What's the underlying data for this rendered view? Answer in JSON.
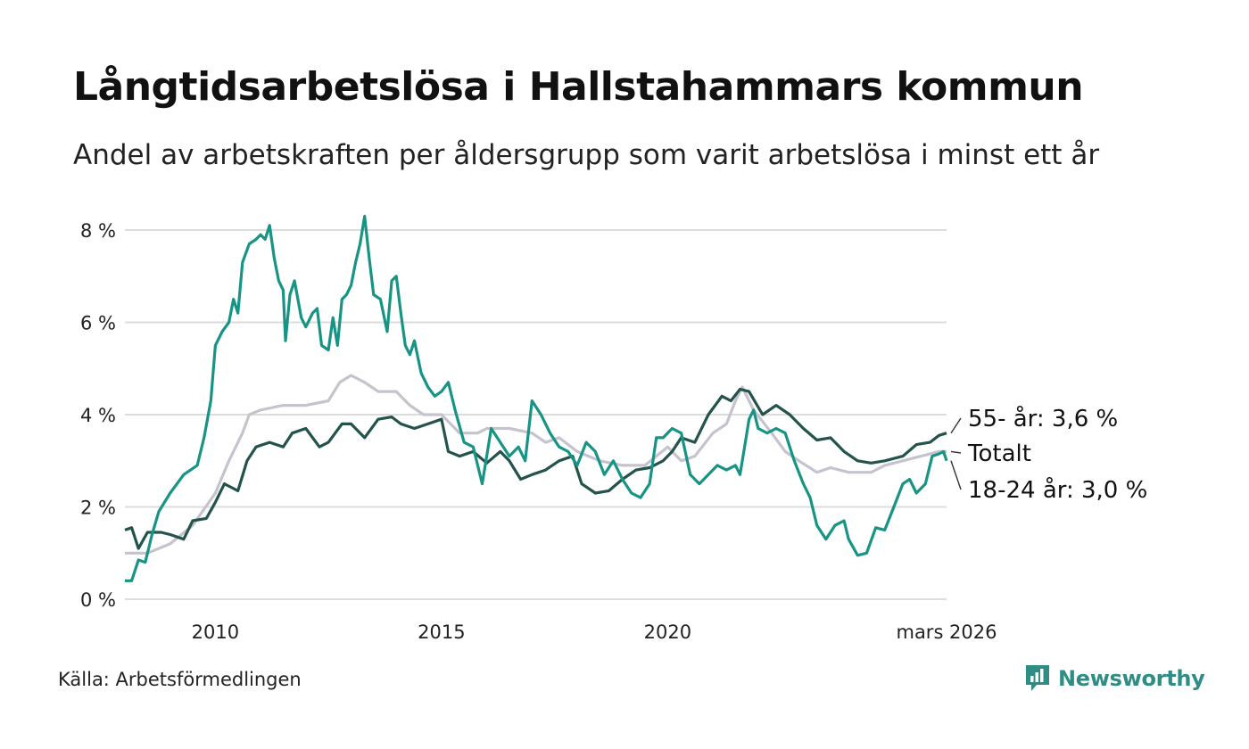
{
  "title": "Långtidsarbetslösa i Hallstahammars kommun",
  "subtitle": "Andel av arbetskraften per åldersgrupp som varit arbetslösa i minst ett år",
  "source": "Källa: Arbetsförmedlingen",
  "brand": {
    "name": "Newsworthy",
    "logo_icon": "bar-chart-speech-bubble-icon",
    "color": "#2e8d84"
  },
  "chart_data": {
    "type": "line",
    "title": "Långtidsarbetslösa i Hallstahammars kommun",
    "xlabel": "",
    "ylabel": "",
    "x_range": [
      2008.0,
      2026.1667
    ],
    "ylim": [
      0,
      8.5
    ],
    "grid": true,
    "y_ticks": [
      0,
      2,
      4,
      6,
      8
    ],
    "y_tick_labels": [
      "0 %",
      "2 %",
      "4 %",
      "6 %",
      "8 %"
    ],
    "x_ticks": [
      2010,
      2015,
      2020,
      2026.1667
    ],
    "x_tick_labels": [
      "2010",
      "2015",
      "2020",
      "mars 2026"
    ],
    "series": [
      {
        "name": "Totalt",
        "label": "Totalt",
        "color": "#c6c3cf",
        "points": [
          [
            2008.0,
            1.0
          ],
          [
            2008.5,
            1.0
          ],
          [
            2009.0,
            1.2
          ],
          [
            2009.5,
            1.6
          ],
          [
            2010.0,
            2.3
          ],
          [
            2010.3,
            3.0
          ],
          [
            2010.6,
            3.6
          ],
          [
            2010.75,
            4.0
          ],
          [
            2011.0,
            4.1
          ],
          [
            2011.5,
            4.2
          ],
          [
            2012.0,
            4.2
          ],
          [
            2012.5,
            4.3
          ],
          [
            2012.75,
            4.7
          ],
          [
            2013.0,
            4.85
          ],
          [
            2013.3,
            4.7
          ],
          [
            2013.6,
            4.5
          ],
          [
            2014.0,
            4.5
          ],
          [
            2014.3,
            4.2
          ],
          [
            2014.6,
            4.0
          ],
          [
            2015.0,
            4.0
          ],
          [
            2015.4,
            3.6
          ],
          [
            2015.8,
            3.6
          ],
          [
            2016.0,
            3.7
          ],
          [
            2016.5,
            3.7
          ],
          [
            2017.0,
            3.6
          ],
          [
            2017.3,
            3.4
          ],
          [
            2017.6,
            3.5
          ],
          [
            2018.0,
            3.2
          ],
          [
            2018.5,
            3.0
          ],
          [
            2019.0,
            2.9
          ],
          [
            2019.5,
            2.9
          ],
          [
            2020.0,
            3.3
          ],
          [
            2020.3,
            3.0
          ],
          [
            2020.6,
            3.1
          ],
          [
            2021.0,
            3.6
          ],
          [
            2021.3,
            3.8
          ],
          [
            2021.5,
            4.3
          ],
          [
            2021.65,
            4.6
          ],
          [
            2021.9,
            4.1
          ],
          [
            2022.3,
            3.6
          ],
          [
            2022.6,
            3.2
          ],
          [
            2022.9,
            3.0
          ],
          [
            2023.3,
            2.75
          ],
          [
            2023.6,
            2.85
          ],
          [
            2024.0,
            2.75
          ],
          [
            2024.5,
            2.75
          ],
          [
            2024.8,
            2.9
          ],
          [
            2025.2,
            3.0
          ],
          [
            2025.6,
            3.1
          ],
          [
            2026.0,
            3.2
          ],
          [
            2026.1667,
            3.2
          ]
        ]
      },
      {
        "name": "55- år",
        "label": "55- år: 3,6 %",
        "color": "#24534b",
        "points": [
          [
            2008.0,
            1.5
          ],
          [
            2008.15,
            1.55
          ],
          [
            2008.3,
            1.1
          ],
          [
            2008.5,
            1.45
          ],
          [
            2008.8,
            1.45
          ],
          [
            2009.0,
            1.4
          ],
          [
            2009.3,
            1.3
          ],
          [
            2009.5,
            1.7
          ],
          [
            2009.8,
            1.75
          ],
          [
            2010.0,
            2.1
          ],
          [
            2010.2,
            2.5
          ],
          [
            2010.5,
            2.35
          ],
          [
            2010.7,
            3.0
          ],
          [
            2010.9,
            3.3
          ],
          [
            2011.2,
            3.4
          ],
          [
            2011.5,
            3.3
          ],
          [
            2011.7,
            3.6
          ],
          [
            2012.0,
            3.7
          ],
          [
            2012.3,
            3.3
          ],
          [
            2012.5,
            3.4
          ],
          [
            2012.8,
            3.8
          ],
          [
            2013.0,
            3.8
          ],
          [
            2013.3,
            3.5
          ],
          [
            2013.6,
            3.9
          ],
          [
            2013.9,
            3.95
          ],
          [
            2014.1,
            3.8
          ],
          [
            2014.4,
            3.7
          ],
          [
            2014.7,
            3.8
          ],
          [
            2015.0,
            3.9
          ],
          [
            2015.15,
            3.2
          ],
          [
            2015.4,
            3.1
          ],
          [
            2015.7,
            3.2
          ],
          [
            2016.0,
            2.95
          ],
          [
            2016.3,
            3.2
          ],
          [
            2016.5,
            3.0
          ],
          [
            2016.75,
            2.6
          ],
          [
            2017.0,
            2.7
          ],
          [
            2017.3,
            2.8
          ],
          [
            2017.6,
            3.0
          ],
          [
            2017.9,
            3.1
          ],
          [
            2018.1,
            2.5
          ],
          [
            2018.4,
            2.3
          ],
          [
            2018.7,
            2.35
          ],
          [
            2019.0,
            2.6
          ],
          [
            2019.3,
            2.8
          ],
          [
            2019.6,
            2.85
          ],
          [
            2019.9,
            3.0
          ],
          [
            2020.1,
            3.2
          ],
          [
            2020.3,
            3.5
          ],
          [
            2020.6,
            3.4
          ],
          [
            2020.9,
            4.0
          ],
          [
            2021.2,
            4.4
          ],
          [
            2021.4,
            4.3
          ],
          [
            2021.6,
            4.55
          ],
          [
            2021.8,
            4.5
          ],
          [
            2022.1,
            4.0
          ],
          [
            2022.4,
            4.2
          ],
          [
            2022.7,
            4.0
          ],
          [
            2023.0,
            3.7
          ],
          [
            2023.3,
            3.45
          ],
          [
            2023.6,
            3.5
          ],
          [
            2023.9,
            3.2
          ],
          [
            2024.2,
            3.0
          ],
          [
            2024.5,
            2.95
          ],
          [
            2024.8,
            3.0
          ],
          [
            2025.2,
            3.1
          ],
          [
            2025.5,
            3.35
          ],
          [
            2025.8,
            3.4
          ],
          [
            2026.0,
            3.55
          ],
          [
            2026.1667,
            3.6
          ]
        ]
      },
      {
        "name": "18-24 år",
        "label": "18-24 år: 3,0 %",
        "color": "#189485",
        "points": [
          [
            2008.0,
            0.4
          ],
          [
            2008.15,
            0.4
          ],
          [
            2008.3,
            0.85
          ],
          [
            2008.45,
            0.8
          ],
          [
            2008.6,
            1.4
          ],
          [
            2008.75,
            1.9
          ],
          [
            2009.0,
            2.3
          ],
          [
            2009.3,
            2.7
          ],
          [
            2009.6,
            2.9
          ],
          [
            2009.75,
            3.5
          ],
          [
            2009.9,
            4.3
          ],
          [
            2010.0,
            5.5
          ],
          [
            2010.15,
            5.8
          ],
          [
            2010.3,
            6.0
          ],
          [
            2010.4,
            6.5
          ],
          [
            2010.5,
            6.2
          ],
          [
            2010.6,
            7.3
          ],
          [
            2010.75,
            7.7
          ],
          [
            2010.9,
            7.8
          ],
          [
            2011.0,
            7.9
          ],
          [
            2011.1,
            7.8
          ],
          [
            2011.2,
            8.1
          ],
          [
            2011.3,
            7.4
          ],
          [
            2011.4,
            6.9
          ],
          [
            2011.5,
            6.7
          ],
          [
            2011.55,
            5.6
          ],
          [
            2011.65,
            6.6
          ],
          [
            2011.75,
            6.9
          ],
          [
            2011.9,
            6.1
          ],
          [
            2012.0,
            5.9
          ],
          [
            2012.15,
            6.2
          ],
          [
            2012.25,
            6.3
          ],
          [
            2012.35,
            5.5
          ],
          [
            2012.5,
            5.4
          ],
          [
            2012.6,
            6.1
          ],
          [
            2012.7,
            5.5
          ],
          [
            2012.8,
            6.5
          ],
          [
            2012.9,
            6.6
          ],
          [
            2013.0,
            6.8
          ],
          [
            2013.1,
            7.3
          ],
          [
            2013.2,
            7.7
          ],
          [
            2013.3,
            8.3
          ],
          [
            2013.4,
            7.4
          ],
          [
            2013.5,
            6.6
          ],
          [
            2013.65,
            6.5
          ],
          [
            2013.8,
            5.8
          ],
          [
            2013.9,
            6.9
          ],
          [
            2014.0,
            7.0
          ],
          [
            2014.1,
            6.2
          ],
          [
            2014.2,
            5.5
          ],
          [
            2014.3,
            5.3
          ],
          [
            2014.4,
            5.6
          ],
          [
            2014.55,
            4.9
          ],
          [
            2014.7,
            4.6
          ],
          [
            2014.85,
            4.4
          ],
          [
            2015.0,
            4.5
          ],
          [
            2015.15,
            4.7
          ],
          [
            2015.3,
            4.1
          ],
          [
            2015.5,
            3.4
          ],
          [
            2015.7,
            3.3
          ],
          [
            2015.9,
            2.5
          ],
          [
            2016.1,
            3.7
          ],
          [
            2016.3,
            3.4
          ],
          [
            2016.5,
            3.1
          ],
          [
            2016.7,
            3.3
          ],
          [
            2016.85,
            3.0
          ],
          [
            2017.0,
            4.3
          ],
          [
            2017.2,
            4.0
          ],
          [
            2017.4,
            3.6
          ],
          [
            2017.6,
            3.3
          ],
          [
            2017.8,
            3.2
          ],
          [
            2018.0,
            2.9
          ],
          [
            2018.2,
            3.4
          ],
          [
            2018.4,
            3.2
          ],
          [
            2018.6,
            2.7
          ],
          [
            2018.8,
            3.0
          ],
          [
            2019.0,
            2.6
          ],
          [
            2019.2,
            2.3
          ],
          [
            2019.4,
            2.2
          ],
          [
            2019.6,
            2.5
          ],
          [
            2019.75,
            3.5
          ],
          [
            2019.9,
            3.5
          ],
          [
            2020.1,
            3.7
          ],
          [
            2020.3,
            3.6
          ],
          [
            2020.5,
            2.7
          ],
          [
            2020.7,
            2.5
          ],
          [
            2020.9,
            2.7
          ],
          [
            2021.1,
            2.9
          ],
          [
            2021.3,
            2.8
          ],
          [
            2021.5,
            2.9
          ],
          [
            2021.6,
            2.7
          ],
          [
            2021.7,
            3.3
          ],
          [
            2021.8,
            3.9
          ],
          [
            2021.9,
            4.1
          ],
          [
            2022.0,
            3.7
          ],
          [
            2022.2,
            3.6
          ],
          [
            2022.4,
            3.7
          ],
          [
            2022.6,
            3.6
          ],
          [
            2022.8,
            3.0
          ],
          [
            2023.0,
            2.5
          ],
          [
            2023.15,
            2.2
          ],
          [
            2023.3,
            1.6
          ],
          [
            2023.5,
            1.3
          ],
          [
            2023.7,
            1.6
          ],
          [
            2023.9,
            1.7
          ],
          [
            2024.0,
            1.3
          ],
          [
            2024.2,
            0.95
          ],
          [
            2024.4,
            1.0
          ],
          [
            2024.6,
            1.55
          ],
          [
            2024.8,
            1.5
          ],
          [
            2025.0,
            2.0
          ],
          [
            2025.2,
            2.5
          ],
          [
            2025.35,
            2.6
          ],
          [
            2025.5,
            2.3
          ],
          [
            2025.7,
            2.5
          ],
          [
            2025.85,
            3.1
          ],
          [
            2026.0,
            3.15
          ],
          [
            2026.1,
            3.2
          ],
          [
            2026.1667,
            3.0
          ]
        ]
      }
    ]
  }
}
